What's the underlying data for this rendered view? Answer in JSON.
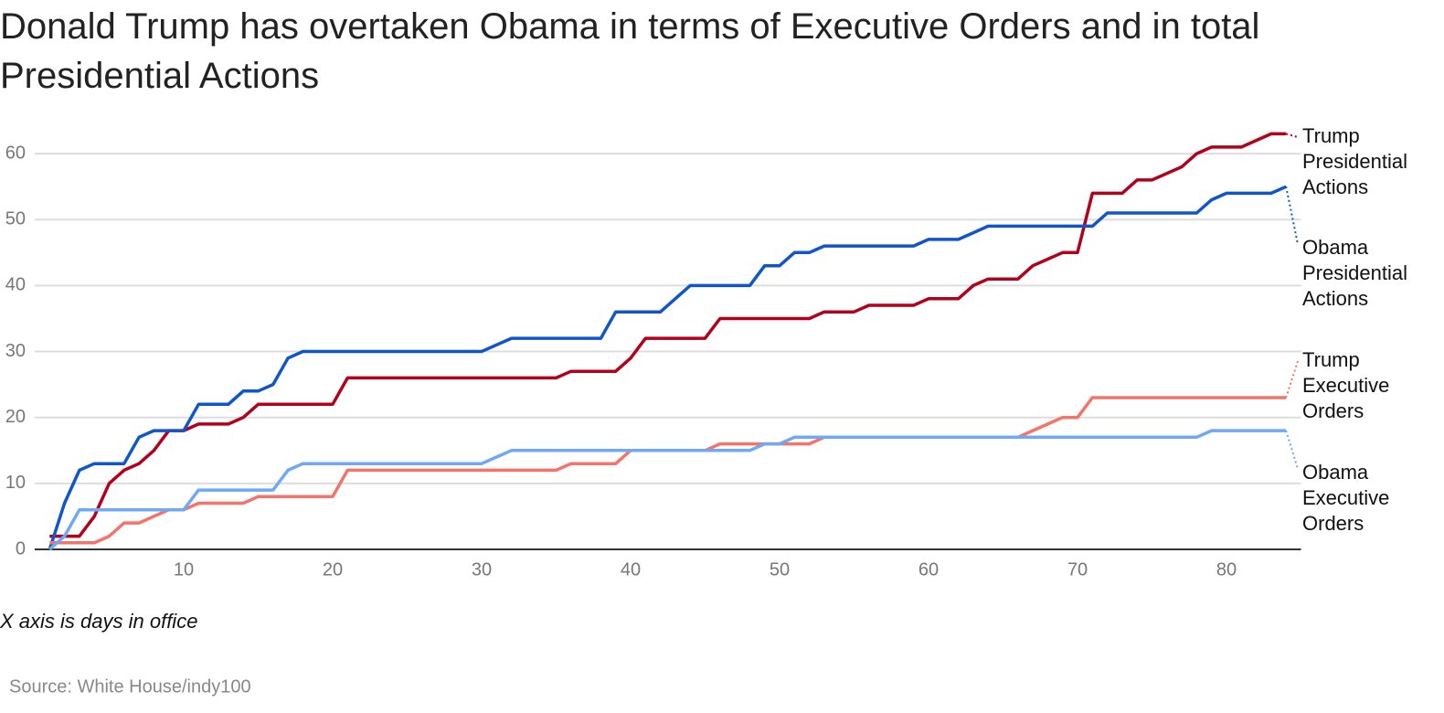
{
  "chart_data": {
    "type": "line",
    "title": "Donald Trump has overtaken Obama in terms of Executive Orders and in total Presidential Actions",
    "annotation": "X axis is days in office",
    "source": "Source: White House/indy100",
    "x": [
      1,
      2,
      3,
      4,
      5,
      6,
      7,
      8,
      9,
      10,
      11,
      12,
      13,
      14,
      15,
      16,
      17,
      18,
      19,
      20,
      21,
      22,
      23,
      24,
      25,
      26,
      27,
      28,
      29,
      30,
      31,
      32,
      33,
      34,
      35,
      36,
      37,
      38,
      39,
      40,
      41,
      42,
      43,
      44,
      45,
      46,
      47,
      48,
      49,
      50,
      51,
      52,
      53,
      54,
      55,
      56,
      57,
      58,
      59,
      60,
      61,
      62,
      63,
      64,
      65,
      66,
      67,
      68,
      69,
      70,
      71,
      72,
      73,
      74,
      75,
      76,
      77,
      78,
      79,
      80,
      81,
      82,
      83,
      84
    ],
    "series": [
      {
        "name": "Trump Presidential Actions",
        "color": "#b3001b",
        "values": [
          2,
          2,
          2,
          5,
          10,
          12,
          13,
          15,
          18,
          18,
          19,
          19,
          19,
          20,
          22,
          22,
          22,
          22,
          22,
          22,
          26,
          26,
          26,
          26,
          26,
          26,
          26,
          26,
          26,
          26,
          26,
          26,
          26,
          26,
          26,
          27,
          27,
          27,
          27,
          29,
          32,
          32,
          32,
          32,
          32,
          35,
          35,
          35,
          35,
          35,
          35,
          35,
          36,
          36,
          36,
          37,
          37,
          37,
          37,
          38,
          38,
          38,
          40,
          41,
          41,
          41,
          43,
          44,
          45,
          45,
          54,
          54,
          54,
          56,
          56,
          57,
          58,
          60,
          61,
          61,
          61,
          62,
          63,
          63
        ]
      },
      {
        "name": "Obama Presidential Actions",
        "color": "#1155cc",
        "values": [
          0,
          7,
          12,
          13,
          13,
          13,
          17,
          18,
          18,
          18,
          22,
          22,
          22,
          24,
          24,
          25,
          29,
          30,
          30,
          30,
          30,
          30,
          30,
          30,
          30,
          30,
          30,
          30,
          30,
          30,
          31,
          32,
          32,
          32,
          32,
          32,
          32,
          32,
          36,
          36,
          36,
          36,
          38,
          40,
          40,
          40,
          40,
          40,
          43,
          43,
          45,
          45,
          46,
          46,
          46,
          46,
          46,
          46,
          46,
          47,
          47,
          47,
          48,
          49,
          49,
          49,
          49,
          49,
          49,
          49,
          49,
          51,
          51,
          51,
          51,
          51,
          51,
          51,
          53,
          54,
          54,
          54,
          54,
          55
        ]
      },
      {
        "name": "Trump Executive Orders",
        "color": "#f4736a",
        "values": [
          1,
          1,
          1,
          1,
          2,
          4,
          4,
          5,
          6,
          6,
          7,
          7,
          7,
          7,
          8,
          8,
          8,
          8,
          8,
          8,
          12,
          12,
          12,
          12,
          12,
          12,
          12,
          12,
          12,
          12,
          12,
          12,
          12,
          12,
          12,
          13,
          13,
          13,
          13,
          15,
          15,
          15,
          15,
          15,
          15,
          16,
          16,
          16,
          16,
          16,
          16,
          16,
          17,
          17,
          17,
          17,
          17,
          17,
          17,
          17,
          17,
          17,
          17,
          17,
          17,
          17,
          18,
          19,
          20,
          20,
          23,
          23,
          23,
          23,
          23,
          23,
          23,
          23,
          23,
          23,
          23,
          23,
          23,
          23
        ]
      },
      {
        "name": "Obama Executive Orders",
        "color": "#6fa8f5",
        "values": [
          0,
          2,
          6,
          6,
          6,
          6,
          6,
          6,
          6,
          6,
          9,
          9,
          9,
          9,
          9,
          9,
          12,
          13,
          13,
          13,
          13,
          13,
          13,
          13,
          13,
          13,
          13,
          13,
          13,
          13,
          14,
          15,
          15,
          15,
          15,
          15,
          15,
          15,
          15,
          15,
          15,
          15,
          15,
          15,
          15,
          15,
          15,
          15,
          16,
          16,
          17,
          17,
          17,
          17,
          17,
          17,
          17,
          17,
          17,
          17,
          17,
          17,
          17,
          17,
          17,
          17,
          17,
          17,
          17,
          17,
          17,
          17,
          17,
          17,
          17,
          17,
          17,
          17,
          18,
          18,
          18,
          18,
          18,
          18
        ]
      }
    ],
    "xlim": [
      0,
      85
    ],
    "xticks": [
      10,
      20,
      30,
      40,
      50,
      60,
      70,
      80
    ],
    "ylim": [
      0,
      65
    ],
    "yticks": [
      0,
      10,
      20,
      30,
      40,
      50,
      60
    ],
    "grid": true
  }
}
